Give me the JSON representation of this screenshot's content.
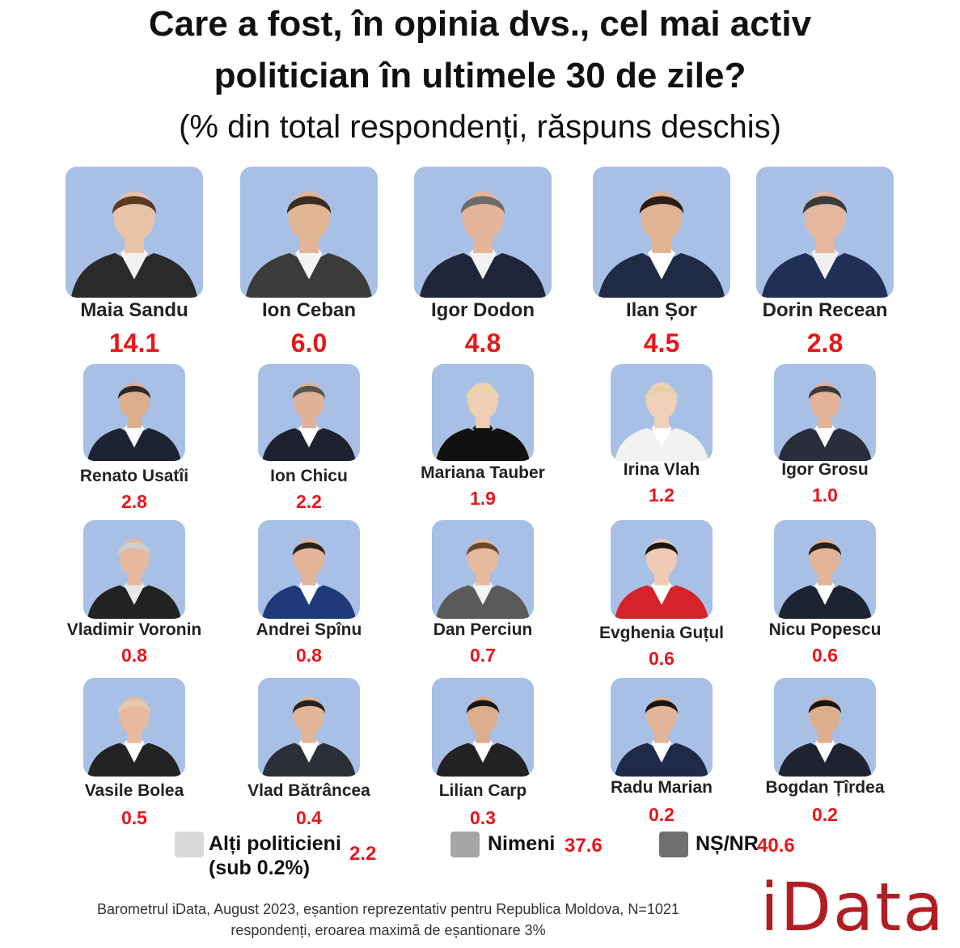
{
  "chart_data": {
    "type": "table",
    "title_line1": "Care a fost, în opinia dvs., cel mai activ",
    "title_line2": "politician în ultimele 30 de zile?",
    "subtitle": "(% din total respondenți, răspuns deschis)",
    "politicians": [
      {
        "name": "Maia Sandu",
        "value": "14.1",
        "suit": "#2a2a2a",
        "shirt": "#f2f2f2",
        "hair": "#5a3a22",
        "skin": "#e9c3a8"
      },
      {
        "name": "Ion Ceban",
        "value": "6.0",
        "suit": "#3b3b3b",
        "shirt": "#f5f5f5",
        "hair": "#3a2d24",
        "skin": "#e2b595"
      },
      {
        "name": "Igor Dodon",
        "value": "4.8",
        "suit": "#1e2538",
        "shirt": "#f2f2f2",
        "hair": "#6b6b6b",
        "skin": "#e6b49b"
      },
      {
        "name": "Ilan Șor",
        "value": "4.5",
        "suit": "#1f2b45",
        "shirt": "#ffffff",
        "hair": "#2a1e16",
        "skin": "#e0b393"
      },
      {
        "name": "Dorin Recean",
        "value": "2.8",
        "suit": "#1f2f55",
        "shirt": "#f0f0f0",
        "hair": "#3a3a3a",
        "skin": "#e4b79e"
      },
      {
        "name": "Renato Usatîi",
        "value": "2.8",
        "suit": "#1d2333",
        "shirt": "#ffffff",
        "hair": "#2b2b2b",
        "skin": "#dcae8e"
      },
      {
        "name": "Ion Chicu",
        "value": "2.2",
        "suit": "#1e2230",
        "shirt": "#ffffff",
        "hair": "#555555",
        "skin": "#e0b196"
      },
      {
        "name": "Mariana Tauber",
        "value": "1.9",
        "suit": "#111111",
        "shirt": "#111111",
        "hair": "#e9d6a4",
        "skin": "#f0cdb5"
      },
      {
        "name": "Irina Vlah",
        "value": "1.2",
        "suit": "#f2f2f2",
        "shirt": "#ffffff",
        "hair": "#e4d2a6",
        "skin": "#f1cfb8"
      },
      {
        "name": "Igor Grosu",
        "value": "1.0",
        "suit": "#2a2e3a",
        "shirt": "#ffffff",
        "hair": "#3a3a3a",
        "skin": "#e2b398"
      },
      {
        "name": "Vladimir Voronin",
        "value": "0.8",
        "suit": "#222222",
        "shirt": "#e8e8e8",
        "hair": "#cfcfcf",
        "skin": "#e6b8a0"
      },
      {
        "name": "Andrei Spînu",
        "value": "0.8",
        "suit": "#1e3a78",
        "shirt": "#ffffff",
        "hair": "#2a211b",
        "skin": "#e2b498"
      },
      {
        "name": "Dan Perciun",
        "value": "0.7",
        "suit": "#5a5a5a",
        "shirt": "#f4f4f4",
        "hair": "#6b4a2a",
        "skin": "#e6ba9c"
      },
      {
        "name": "Evghenia Guțul",
        "value": "0.6",
        "suit": "#d6232a",
        "shirt": "#ffffff",
        "hair": "#1c1410",
        "skin": "#f0cbb3"
      },
      {
        "name": "Nicu Popescu",
        "value": "0.6",
        "suit": "#1d2333",
        "shirt": "#ffffff",
        "hair": "#2a211b",
        "skin": "#e2b498"
      },
      {
        "name": "Vasile Bolea",
        "value": "0.5",
        "suit": "#232323",
        "shirt": "#ffffff",
        "hair": "#e7c8b0",
        "skin": "#e8b99e"
      },
      {
        "name": "Vlad Bătrâncea",
        "value": "0.4",
        "suit": "#2b2f3a",
        "shirt": "#ffffff",
        "hair": "#2a211b",
        "skin": "#e2b498"
      },
      {
        "name": "Lilian Carp",
        "value": "0.3",
        "suit": "#222222",
        "shirt": "#ffffff",
        "hair": "#1c1410",
        "skin": "#dcae8e"
      },
      {
        "name": "Radu Marian",
        "value": "0.2",
        "suit": "#1d2a4a",
        "shirt": "#ffffff",
        "hair": "#1c1410",
        "skin": "#e2b498"
      },
      {
        "name": "Bogdan Țîrdea",
        "value": "0.2",
        "suit": "#1f2330",
        "shirt": "#ffffff",
        "hair": "#1c1410",
        "skin": "#dcae8e"
      }
    ],
    "legend": [
      {
        "label_line1": "Alți politicieni",
        "label_line2": "(sub 0.2%)",
        "value": "2.2",
        "color": "#d9d9d9"
      },
      {
        "label_line1": "Nimeni",
        "label_line2": "",
        "value": "37.6",
        "color": "#a6a6a6"
      },
      {
        "label_line1": "NȘ/NR",
        "label_line2": "",
        "value": "40.6",
        "color": "#6f6f6f"
      }
    ]
  },
  "footer_line1": "Barometrul iData, August 2023, eșantion reprezentativ pentru Republica Moldova, N=1021",
  "footer_line2": "respondenți, eroarea maximă de eșantionare 3%",
  "logo_text": "iData"
}
